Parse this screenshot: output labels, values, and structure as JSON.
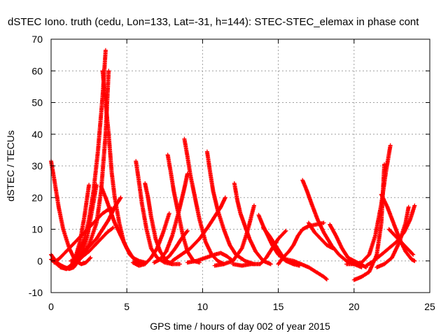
{
  "chart_data": {
    "type": "scatter",
    "title": "dSTEC Iono. truth (cedu, Lon=133, Lat=-31, h=144): STEC-STEC_elemax in phase cont",
    "xlabel": "GPS time / hours of day 002 of year 2015",
    "ylabel": "dSTEC  / TECUs",
    "xlim": [
      0,
      25
    ],
    "ylim": [
      -10,
      70
    ],
    "x_ticks": [
      0,
      5,
      10,
      15,
      20,
      25
    ],
    "y_ticks": [
      -10,
      0,
      10,
      20,
      30,
      40,
      50,
      60,
      70
    ],
    "grid": true,
    "legend": "none",
    "marker": "plus",
    "colors": {
      "series": "#ff0000",
      "axis": "#000000",
      "grid": "#a0a0a0"
    },
    "series": [
      {
        "x": [
          0.0,
          0.2,
          0.5,
          0.8,
          1.2,
          1.6,
          2.0,
          2.3,
          2.6
        ],
        "y": [
          31.5,
          26,
          17,
          10,
          4,
          0,
          -1,
          -0.5,
          1
        ]
      },
      {
        "x": [
          0.0,
          0.3,
          0.7,
          1.0,
          1.3,
          1.6,
          1.9,
          2.2,
          2.5
        ],
        "y": [
          2,
          0,
          -2,
          -2.5,
          -2,
          1,
          6,
          14,
          24
        ]
      },
      {
        "x": [
          0.5,
          0.9,
          1.2,
          1.5,
          1.8,
          2.1,
          2.4,
          2.7,
          3.0
        ],
        "y": [
          -1,
          -2,
          -2.5,
          -2,
          0,
          3,
          8,
          16,
          24
        ]
      },
      {
        "x": [
          0.6,
          1.0,
          1.4,
          1.8,
          2.2,
          2.5,
          2.8,
          3.1,
          3.4,
          3.6
        ],
        "y": [
          -2,
          -2.5,
          -1,
          2,
          7,
          13,
          22,
          35,
          52,
          66.5
        ]
      },
      {
        "x": [
          0.0,
          0.5,
          1.0,
          1.5,
          2.0,
          2.5,
          3.0,
          3.3,
          3.6,
          3.8
        ],
        "y": [
          0.5,
          -1.5,
          -2.5,
          -1.5,
          1,
          5,
          12,
          22,
          40,
          60
        ]
      },
      {
        "x": [
          0.2,
          0.6,
          1.0,
          1.4,
          1.8,
          2.2,
          2.6,
          3.0,
          3.4,
          3.7,
          4.0
        ],
        "y": [
          -0.5,
          1,
          3,
          5,
          7,
          9,
          11,
          13,
          15,
          16,
          16.5
        ]
      },
      {
        "x": [
          3.4,
          3.6,
          3.8,
          4.0,
          4.2,
          4.5,
          4.8,
          5.2,
          5.6,
          6.0
        ],
        "y": [
          60,
          50,
          40,
          28,
          20,
          12,
          6,
          2,
          0,
          -1
        ]
      },
      {
        "x": [
          3.3,
          3.6,
          3.9,
          4.2,
          4.6,
          5.0,
          5.4,
          5.8,
          6.2
        ],
        "y": [
          23.5,
          20,
          16,
          12,
          8,
          4,
          1,
          0,
          -0.5
        ]
      },
      {
        "x": [
          1.8,
          2.2,
          2.6,
          3.0,
          3.4,
          3.8,
          4.2,
          4.6
        ],
        "y": [
          1,
          3,
          5,
          7,
          10,
          13,
          17,
          20
        ]
      },
      {
        "x": [
          1.3,
          1.7,
          2.1,
          2.5,
          2.9,
          3.3,
          3.7,
          4.1
        ],
        "y": [
          0,
          0.5,
          1.5,
          3,
          5,
          7,
          9,
          10.5
        ]
      },
      {
        "x": [
          5.6,
          5.8,
          6.0,
          6.3,
          6.6,
          7.0,
          7.5,
          8.0
        ],
        "y": [
          31.5,
          25,
          18,
          10,
          4,
          1,
          -0.5,
          -1
        ]
      },
      {
        "x": [
          6.2,
          6.4,
          6.6,
          6.9,
          7.2,
          7.6,
          8.0,
          8.5
        ],
        "y": [
          24.5,
          20,
          14,
          7,
          3,
          0,
          -1,
          -1
        ]
      },
      {
        "x": [
          5.4,
          5.8,
          6.2,
          6.6,
          7.0,
          7.4,
          7.8
        ],
        "y": [
          -0.5,
          -1.5,
          -1,
          1,
          4,
          9,
          15
        ]
      },
      {
        "x": [
          7.7,
          7.9,
          8.1,
          8.4,
          8.7,
          9.0,
          9.4,
          9.8
        ],
        "y": [
          33.5,
          28,
          22,
          15,
          8,
          3,
          0,
          -0.5
        ]
      },
      {
        "x": [
          6.8,
          7.2,
          7.6,
          8.0,
          8.4,
          8.8,
          9.0
        ],
        "y": [
          -0.5,
          0.5,
          3,
          8,
          15,
          23,
          27.5
        ]
      },
      {
        "x": [
          8.8,
          9.0,
          9.2,
          9.5,
          9.8,
          10.2,
          10.6,
          11.0,
          11.4
        ],
        "y": [
          38.5,
          33,
          27,
          20,
          13,
          6,
          2,
          0,
          -1
        ]
      },
      {
        "x": [
          7.4,
          7.8,
          8.2,
          8.6,
          9.0
        ],
        "y": [
          0,
          1.5,
          4,
          7,
          9.5
        ]
      },
      {
        "x": [
          10.3,
          10.5,
          10.7,
          11.0,
          11.4,
          11.8,
          12.2,
          12.8,
          13.4
        ],
        "y": [
          34.5,
          28,
          22,
          16,
          10,
          5,
          2,
          0,
          -1
        ]
      },
      {
        "x": [
          8.0,
          8.6,
          9.2,
          9.8,
          10.4,
          10.8,
          11.2,
          11.5
        ],
        "y": [
          0,
          2,
          4,
          7,
          11,
          14,
          17,
          20
        ]
      },
      {
        "x": [
          9.0,
          9.6,
          10.2,
          10.8,
          11.2,
          11.6,
          12.0
        ],
        "y": [
          -0.5,
          0,
          1,
          2,
          2.5,
          1.5,
          0
        ]
      },
      {
        "x": [
          12.1,
          12.3,
          12.5,
          12.8,
          13.1,
          13.5,
          14.0,
          14.5
        ],
        "y": [
          24.5,
          19,
          15,
          11,
          7,
          3,
          0,
          -1
        ]
      },
      {
        "x": [
          10.8,
          11.4,
          12.0,
          12.6,
          13.0,
          13.4
        ],
        "y": [
          -1.5,
          -1,
          0,
          4,
          10,
          17.5
        ]
      },
      {
        "x": [
          13.7,
          14.0,
          14.3,
          14.6,
          15.0,
          15.5,
          16.0
        ],
        "y": [
          14.5,
          11,
          8,
          5,
          2,
          0,
          -1
        ]
      },
      {
        "x": [
          12.0,
          12.6,
          13.2,
          13.8,
          14.2,
          14.6,
          15.0,
          15.5
        ],
        "y": [
          -1,
          -1.5,
          -1,
          -1,
          1,
          4,
          7,
          9.5
        ]
      },
      {
        "x": [
          14.0,
          14.4,
          14.8,
          15.2,
          15.6,
          16.0,
          16.4
        ],
        "y": [
          10.5,
          8,
          5,
          2,
          0,
          -1,
          -1.5
        ]
      },
      {
        "x": [
          15.0,
          15.3,
          15.7,
          16.0,
          16.3,
          16.6,
          17.0,
          17.5,
          18.0
        ],
        "y": [
          -1,
          1,
          3,
          5,
          8,
          10,
          11,
          11.5,
          12
        ]
      },
      {
        "x": [
          16.6,
          16.9,
          17.2,
          17.6,
          18.0,
          18.5,
          19.0,
          19.5,
          20.0,
          20.5
        ],
        "y": [
          25.5,
          22,
          18,
          13,
          9,
          5,
          2,
          0,
          -1,
          -2
        ]
      },
      {
        "x": [
          17.0,
          17.4,
          17.8,
          18.2,
          18.6
        ],
        "y": [
          12,
          9,
          7,
          5,
          4
        ]
      },
      {
        "x": [
          15.5,
          16.0,
          16.5,
          17.0,
          17.5,
          18.0,
          18.2
        ],
        "y": [
          0.5,
          0,
          -1,
          -2,
          -3.5,
          -5,
          -5.8
        ]
      },
      {
        "x": [
          18.4,
          18.8,
          19.2,
          19.6,
          20.0,
          20.4,
          20.8
        ],
        "y": [
          11.5,
          8,
          4,
          1,
          0,
          -1,
          -2
        ]
      },
      {
        "x": [
          19.5,
          20.0,
          20.5,
          21.0,
          21.4,
          21.8,
          22.1,
          22.4
        ],
        "y": [
          -1,
          -1,
          -0.5,
          2,
          8,
          18,
          28,
          36.5
        ]
      },
      {
        "x": [
          20.0,
          20.5,
          21.0,
          21.5,
          21.8,
          22.0
        ],
        "y": [
          -6,
          -5,
          -3.5,
          2,
          12,
          30.5
        ]
      },
      {
        "x": [
          21.8,
          22.2,
          22.6,
          23.0,
          23.4,
          23.8,
          24.0
        ],
        "y": [
          21,
          17,
          12,
          7,
          3,
          0.5,
          0
        ]
      },
      {
        "x": [
          20.8,
          21.3,
          21.8,
          22.3,
          22.8,
          23.3,
          23.7,
          24.0
        ],
        "y": [
          -1.5,
          0,
          2,
          4,
          6,
          9,
          13,
          17.5
        ]
      },
      {
        "x": [
          21.5,
          22.0,
          22.5,
          23.0,
          23.4,
          23.6
        ],
        "y": [
          -2,
          -1,
          1,
          6,
          12,
          17
        ]
      },
      {
        "x": [
          22.3,
          22.7,
          23.1,
          23.5,
          23.9
        ],
        "y": [
          10,
          8,
          6,
          4,
          2
        ]
      }
    ]
  }
}
